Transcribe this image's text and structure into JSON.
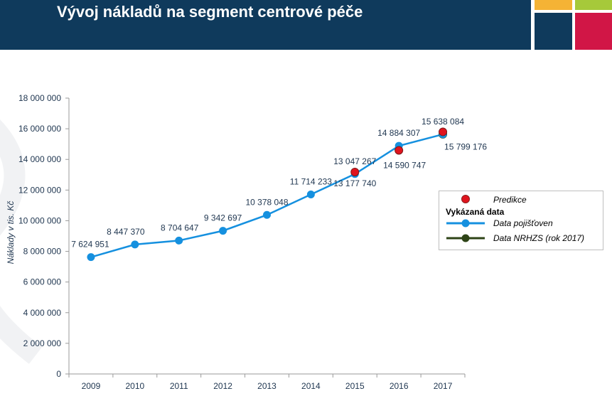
{
  "header": {
    "title": "Vývoj nákladů na segment centrové péče"
  },
  "colors": {
    "header_bg": "#0f3a5c",
    "tile_orange": "#f5b335",
    "tile_green": "#a6c93a",
    "tile_navy": "#0f3a5c",
    "tile_red": "#d11646",
    "series_blue": "#1590df",
    "prediction_red": "#e0141e",
    "nrhzs_green": "#2e4417",
    "axis_text": "#1f3650"
  },
  "chart_data": {
    "type": "line",
    "ylabel": "Náklady v tis. Kč",
    "xlabel": "",
    "ylim": [
      0,
      18000000
    ],
    "yticks": [
      {
        "value": 0,
        "label": "0"
      },
      {
        "value": 2000000,
        "label": "2 000 000"
      },
      {
        "value": 4000000,
        "label": "4 000 000"
      },
      {
        "value": 6000000,
        "label": "6 000 000"
      },
      {
        "value": 8000000,
        "label": "8 000 000"
      },
      {
        "value": 10000000,
        "label": "10 000 000"
      },
      {
        "value": 12000000,
        "label": "12 000 000"
      },
      {
        "value": 14000000,
        "label": "14 000 000"
      },
      {
        "value": 16000000,
        "label": "16 000 000"
      },
      {
        "value": 18000000,
        "label": "18 000 000"
      }
    ],
    "categories": [
      "2009",
      "2010",
      "2011",
      "2012",
      "2013",
      "2014",
      "2015",
      "2016",
      "2017"
    ],
    "grid": false,
    "legend_position": "right",
    "series": [
      {
        "name": "Data pojišťoven",
        "color": "#1590df",
        "values": [
          7624951,
          8447370,
          8704647,
          9342697,
          10378048,
          11714233,
          13047267,
          14884307,
          15638084
        ],
        "labels": [
          "7 624 951",
          "8 447 370",
          "8 704 647",
          "9 342 697",
          "10 378 048",
          "11 714 233",
          "13 047 267",
          "14 884 307",
          "15 638 084"
        ]
      }
    ],
    "predictions": [
      {
        "category": "2015",
        "value": 13177740,
        "label": "13 177 740"
      },
      {
        "category": "2016",
        "value": 14590747,
        "label": "14 590 747"
      },
      {
        "category": "2017",
        "value": 15799176,
        "label": "15 799 176"
      }
    ],
    "nrhzs": [
      {
        "category": "2017",
        "value": 15638084
      }
    ]
  },
  "legend": {
    "prediction": "Predikce",
    "heading": "Vykázaná data",
    "insurers": "Data pojišťoven",
    "nrhzs": "Data NRHZS (rok 2017)"
  }
}
